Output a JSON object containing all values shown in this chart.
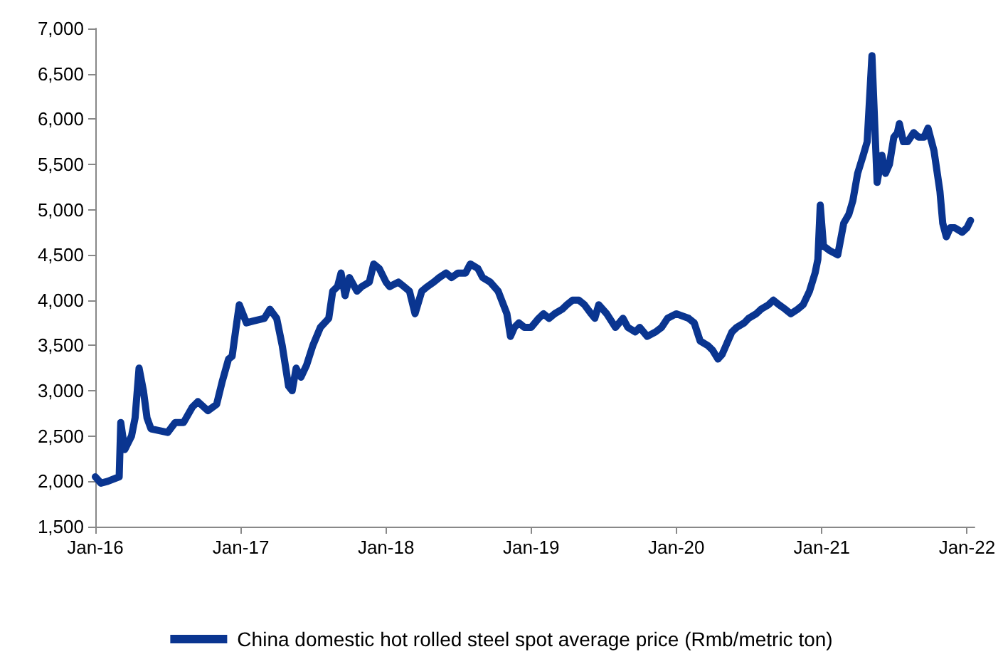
{
  "chart_data": {
    "type": "line",
    "legend": "bottom",
    "grid": false,
    "marker": "none",
    "line_style": "solid",
    "xlim": [
      "2016-01-01",
      "2022-01-20"
    ],
    "xticks": [
      {
        "value": "2016-01-01",
        "label": "Jan-16"
      },
      {
        "value": "2017-01-01",
        "label": "Jan-17"
      },
      {
        "value": "2018-01-01",
        "label": "Jan-18"
      },
      {
        "value": "2019-01-01",
        "label": "Jan-19"
      },
      {
        "value": "2020-01-01",
        "label": "Jan-20"
      },
      {
        "value": "2021-01-01",
        "label": "Jan-21"
      },
      {
        "value": "2022-01-01",
        "label": "Jan-22"
      }
    ],
    "ylim": [
      1500,
      7000
    ],
    "yticks": [
      {
        "value": 1500,
        "label": "1,500"
      },
      {
        "value": 2000,
        "label": "2,000"
      },
      {
        "value": 2500,
        "label": "2,500"
      },
      {
        "value": 3000,
        "label": "3,000"
      },
      {
        "value": 3500,
        "label": "3,500"
      },
      {
        "value": 4000,
        "label": "4,000"
      },
      {
        "value": 4500,
        "label": "4,500"
      },
      {
        "value": 5000,
        "label": "5,000"
      },
      {
        "value": 5500,
        "label": "5,500"
      },
      {
        "value": 6000,
        "label": "6,000"
      },
      {
        "value": 6500,
        "label": "6,500"
      },
      {
        "value": 7000,
        "label": "7,000"
      }
    ],
    "series": [
      {
        "name": "China domestic hot rolled steel spot average price (Rmb/metric ton)",
        "color": "#0a3590",
        "x": [
          "2016-01-01",
          "2016-01-15",
          "2016-02-01",
          "2016-03-01",
          "2016-03-05",
          "2016-03-15",
          "2016-04-01",
          "2016-04-10",
          "2016-04-20",
          "2016-05-01",
          "2016-05-10",
          "2016-05-20",
          "2016-06-10",
          "2016-07-01",
          "2016-07-20",
          "2016-08-10",
          "2016-09-01",
          "2016-09-15",
          "2016-10-10",
          "2016-11-01",
          "2016-11-15",
          "2016-12-01",
          "2016-12-10",
          "2016-12-20",
          "2016-12-28",
          "2017-01-15",
          "2017-02-01",
          "2017-03-01",
          "2017-03-15",
          "2017-04-01",
          "2017-04-15",
          "2017-05-01",
          "2017-05-10",
          "2017-05-20",
          "2017-06-01",
          "2017-06-15",
          "2017-07-01",
          "2017-07-20",
          "2017-08-10",
          "2017-08-20",
          "2017-09-01",
          "2017-09-10",
          "2017-09-20",
          "2017-10-01",
          "2017-10-20",
          "2017-11-01",
          "2017-11-20",
          "2017-12-01",
          "2017-12-15",
          "2018-01-01",
          "2018-01-10",
          "2018-02-01",
          "2018-02-15",
          "2018-03-01",
          "2018-03-15",
          "2018-04-01",
          "2018-04-15",
          "2018-05-01",
          "2018-05-15",
          "2018-06-01",
          "2018-06-15",
          "2018-07-01",
          "2018-07-20",
          "2018-08-01",
          "2018-08-20",
          "2018-09-01",
          "2018-09-20",
          "2018-10-10",
          "2018-11-01",
          "2018-11-10",
          "2018-11-20",
          "2018-12-01",
          "2018-12-15",
          "2019-01-01",
          "2019-01-20",
          "2019-02-01",
          "2019-02-15",
          "2019-03-01",
          "2019-03-20",
          "2019-04-01",
          "2019-04-15",
          "2019-05-01",
          "2019-05-15",
          "2019-06-01",
          "2019-06-10",
          "2019-06-20",
          "2019-07-10",
          "2019-08-01",
          "2019-08-20",
          "2019-09-01",
          "2019-09-20",
          "2019-10-01",
          "2019-10-20",
          "2019-11-10",
          "2019-11-25",
          "2019-12-10",
          "2020-01-01",
          "2020-02-01",
          "2020-02-15",
          "2020-03-01",
          "2020-03-20",
          "2020-04-01",
          "2020-04-15",
          "2020-04-25",
          "2020-05-10",
          "2020-05-20",
          "2020-06-01",
          "2020-06-20",
          "2020-07-01",
          "2020-07-20",
          "2020-08-01",
          "2020-08-20",
          "2020-09-01",
          "2020-09-15",
          "2020-10-01",
          "2020-10-15",
          "2020-11-01",
          "2020-11-15",
          "2020-12-01",
          "2020-12-15",
          "2020-12-22",
          "2020-12-28",
          "2021-01-05",
          "2021-01-20",
          "2021-02-10",
          "2021-02-25",
          "2021-03-10",
          "2021-03-20",
          "2021-04-01",
          "2021-04-15",
          "2021-04-25",
          "2021-05-07",
          "2021-05-20",
          "2021-06-01",
          "2021-06-10",
          "2021-06-20",
          "2021-07-01",
          "2021-07-10",
          "2021-07-15",
          "2021-07-25",
          "2021-08-05",
          "2021-08-20",
          "2021-09-01",
          "2021-09-15",
          "2021-09-25",
          "2021-10-10",
          "2021-10-25",
          "2021-11-01",
          "2021-11-10",
          "2021-11-20",
          "2021-12-01",
          "2021-12-20",
          "2022-01-01",
          "2022-01-10"
        ],
        "values": [
          2050,
          1980,
          2000,
          2050,
          2650,
          2350,
          2500,
          2700,
          3250,
          3000,
          2700,
          2580,
          2560,
          2540,
          2650,
          2650,
          2820,
          2880,
          2780,
          2850,
          3100,
          3350,
          3380,
          3700,
          3950,
          3750,
          3770,
          3800,
          3900,
          3800,
          3500,
          3050,
          3000,
          3250,
          3150,
          3280,
          3500,
          3700,
          3800,
          4100,
          4150,
          4300,
          4050,
          4250,
          4100,
          4150,
          4200,
          4400,
          4350,
          4200,
          4150,
          4200,
          4150,
          4100,
          3850,
          4100,
          4150,
          4200,
          4250,
          4300,
          4250,
          4300,
          4300,
          4400,
          4350,
          4250,
          4200,
          4100,
          3850,
          3600,
          3700,
          3750,
          3700,
          3700,
          3800,
          3850,
          3800,
          3850,
          3900,
          3950,
          4000,
          4000,
          3950,
          3850,
          3800,
          3950,
          3850,
          3700,
          3800,
          3700,
          3650,
          3700,
          3600,
          3650,
          3700,
          3800,
          3850,
          3800,
          3750,
          3550,
          3500,
          3450,
          3350,
          3400,
          3550,
          3650,
          3700,
          3750,
          3800,
          3850,
          3900,
          3950,
          4000,
          3950,
          3900,
          3850,
          3900,
          3950,
          4100,
          4300,
          4450,
          5050,
          4600,
          4550,
          4500,
          4850,
          4950,
          5100,
          5400,
          5600,
          5750,
          6700,
          5300,
          5600,
          5400,
          5500,
          5800,
          5850,
          5950,
          5750,
          5750,
          5850,
          5800,
          5800,
          5900,
          5650,
          5200,
          4850,
          4700,
          4800,
          4800,
          4750,
          4800,
          4880
        ]
      }
    ]
  }
}
